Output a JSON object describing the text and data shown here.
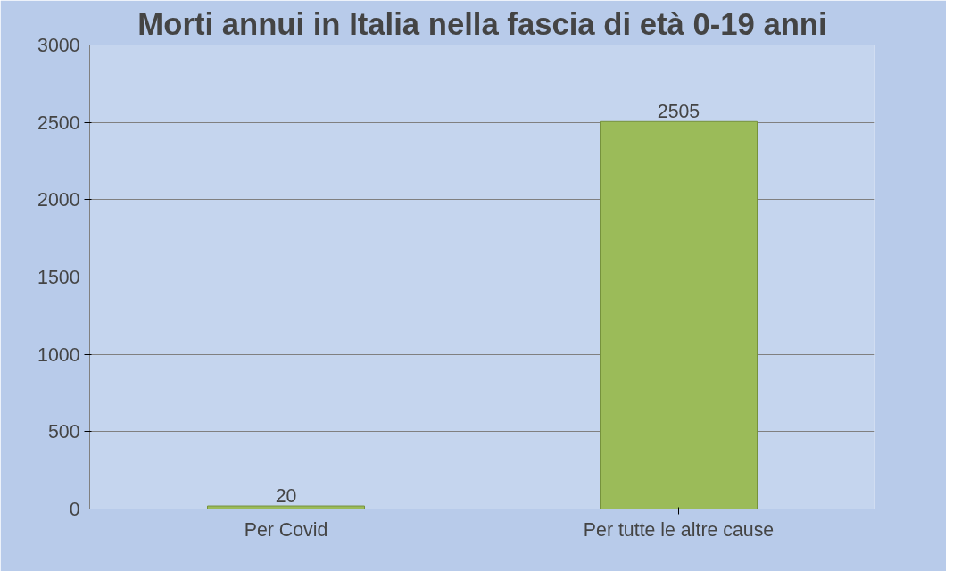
{
  "chart_data": {
    "type": "bar",
    "title": "Morti annui in Italia nella fascia di età 0-19 anni",
    "categories": [
      "Per Covid",
      "Per tutte le altre cause"
    ],
    "values": [
      20,
      2505
    ],
    "color": "#9bbb59",
    "ylim": [
      0,
      3000
    ],
    "yticks": [
      0,
      500,
      1000,
      1500,
      2000,
      2500,
      3000
    ],
    "grid": "y",
    "data_labels": true
  }
}
